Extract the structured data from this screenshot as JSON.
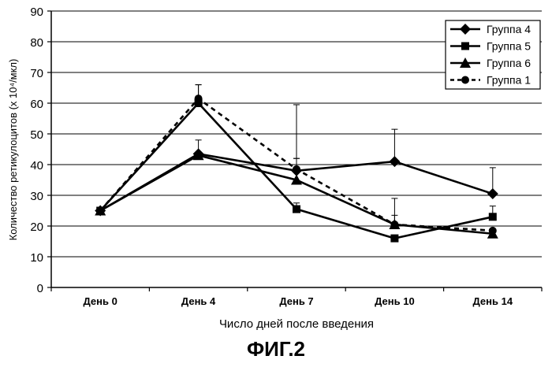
{
  "chart_data": {
    "type": "line",
    "categories": [
      "День 0",
      "День 4",
      "День 7",
      "День 10",
      "День 14"
    ],
    "ylabel": "Количество ретикулоцитов (x 10⁴/мкл)",
    "xlabel": "Число дней после введения",
    "ylim": [
      0,
      90
    ],
    "yticks": [
      0,
      10,
      20,
      30,
      40,
      50,
      60,
      70,
      80,
      90
    ],
    "grid": "horizontal",
    "legend_position": "top-right",
    "series": [
      {
        "name": "Группа 4",
        "marker": "diamond",
        "dash": "solid",
        "values": [
          25,
          43.5,
          38,
          41,
          30.5
        ],
        "err": [
          0,
          4.5,
          4,
          10.5,
          8.5
        ]
      },
      {
        "name": "Группа 5",
        "marker": "square",
        "dash": "solid",
        "values": [
          25,
          60,
          25.5,
          16,
          23
        ],
        "err": [
          0,
          6,
          2,
          0,
          3.5
        ]
      },
      {
        "name": "Группа 6",
        "marker": "triangle",
        "dash": "solid",
        "values": [
          25,
          43,
          35,
          20.5,
          17.5
        ],
        "err": [
          0,
          0,
          24.5,
          8.5,
          0
        ]
      },
      {
        "name": "Группа 1",
        "marker": "circle",
        "dash": "dashed",
        "values": [
          25,
          61.5,
          38.5,
          20.5,
          18.5
        ],
        "err": [
          0,
          4.5,
          3.5,
          3,
          0
        ]
      }
    ]
  },
  "caption": "ФИГ.2"
}
